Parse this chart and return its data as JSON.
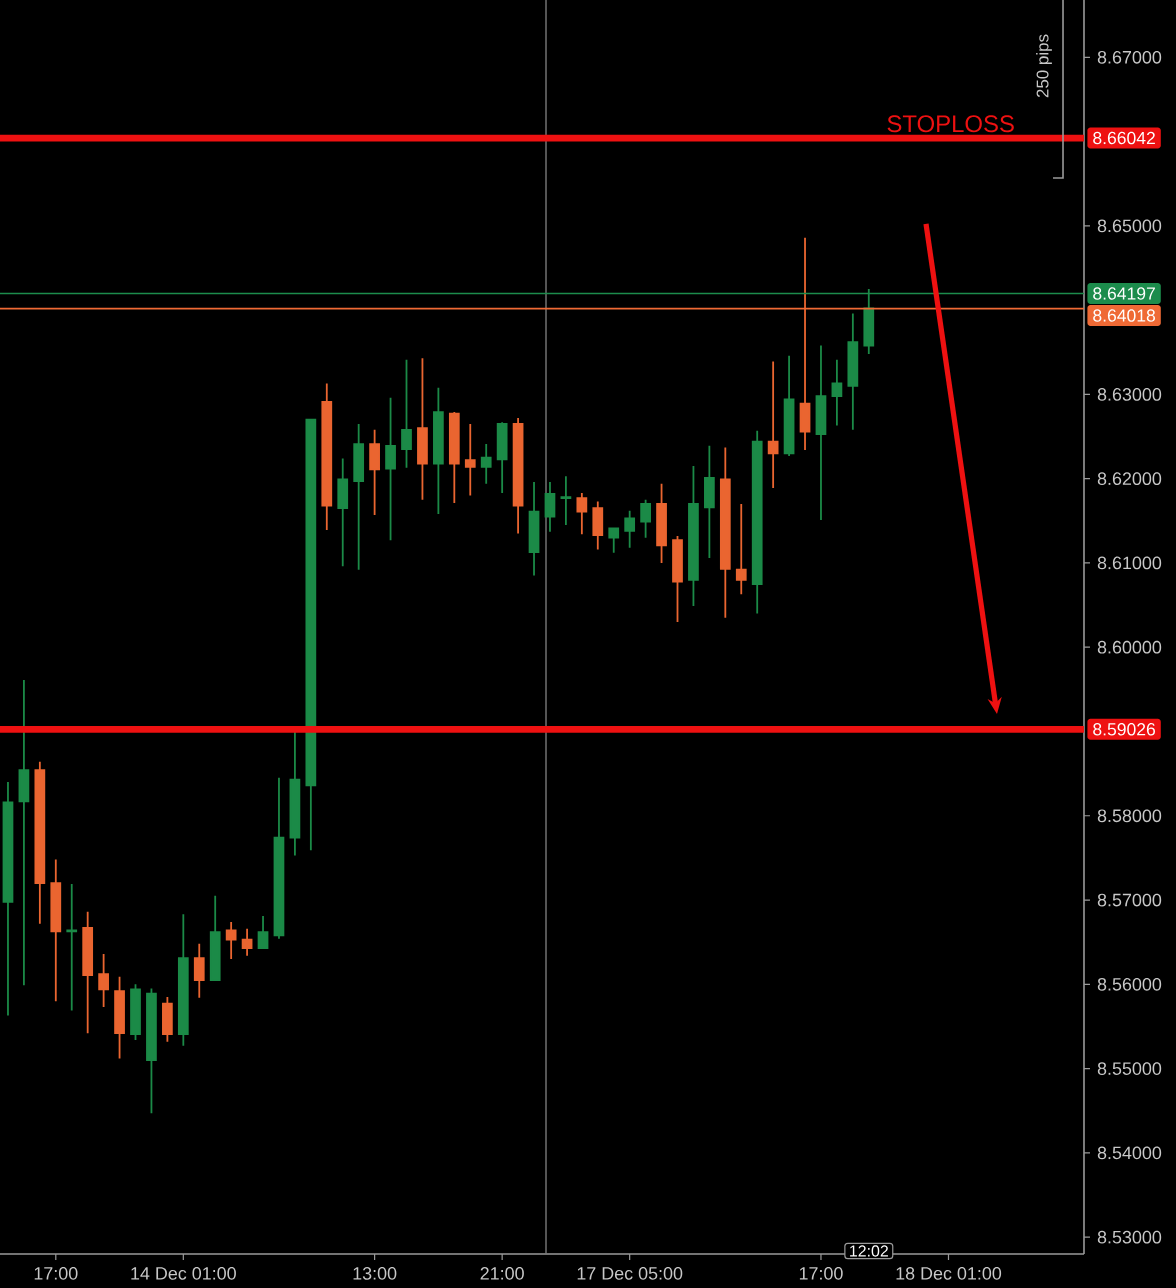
{
  "chart_data": {
    "type": "candlestick",
    "categories": [
      null,
      null,
      null,
      "17:00",
      null,
      null,
      null,
      null,
      null,
      null,
      null,
      "14 Dec 01:00",
      null,
      null,
      null,
      null,
      null,
      null,
      null,
      null,
      null,
      null,
      null,
      "13:00",
      null,
      null,
      null,
      null,
      null,
      null,
      null,
      "21:00",
      null,
      null,
      null,
      null,
      null,
      null,
      null,
      "17 Dec 05:00",
      null,
      null,
      null,
      null,
      null,
      null,
      null,
      null,
      null,
      null,
      null,
      "17:00",
      null,
      null,
      null,
      null,
      null,
      null,
      null,
      "18 Dec 01:00",
      null,
      null,
      null,
      null,
      null,
      null,
      null,
      null
    ],
    "ohlc": [
      [
        8.5698,
        8.584,
        8.5563,
        8.5816
      ],
      [
        8.5817,
        8.5961,
        8.5599,
        8.5854
      ],
      [
        8.5854,
        8.5864,
        8.5672,
        8.572
      ],
      [
        8.572,
        8.5748,
        8.558,
        8.5663
      ],
      [
        8.5663,
        8.5719,
        8.5569,
        8.5664
      ],
      [
        8.5667,
        8.5686,
        8.5542,
        8.5611
      ],
      [
        8.5612,
        8.5636,
        8.5573,
        8.5594
      ],
      [
        8.5592,
        8.5609,
        8.5512,
        8.5542
      ],
      [
        8.5541,
        8.56,
        8.5534,
        8.5594
      ],
      [
        8.551,
        8.5595,
        8.5447,
        8.5589
      ],
      [
        8.5577,
        8.5585,
        8.5532,
        8.5541
      ],
      [
        8.5541,
        8.5683,
        8.5527,
        8.5631
      ],
      [
        8.5631,
        8.5648,
        8.5584,
        8.5605
      ],
      [
        8.5605,
        8.5705,
        8.5605,
        8.5662
      ],
      [
        8.5664,
        8.5674,
        8.563,
        8.5653
      ],
      [
        8.5653,
        8.5666,
        8.5634,
        8.5643
      ],
      [
        8.5643,
        8.5681,
        8.5643,
        8.5662
      ],
      [
        8.5658,
        8.5845,
        8.5654,
        8.5774
      ],
      [
        8.5774,
        8.5904,
        8.5753,
        8.5843
      ],
      [
        8.5836,
        8.627,
        8.5759,
        8.627
      ],
      [
        8.6291,
        8.6313,
        8.6139,
        8.6168
      ],
      [
        8.6165,
        8.6224,
        8.6096,
        8.6199
      ],
      [
        8.6197,
        8.6265,
        8.6092,
        8.6241
      ],
      [
        8.6241,
        8.6258,
        8.6157,
        8.6211
      ],
      [
        8.6212,
        8.6296,
        8.6127,
        8.6239
      ],
      [
        8.6235,
        8.6341,
        8.6213,
        8.6258
      ],
      [
        8.626,
        8.6343,
        8.6175,
        8.6218
      ],
      [
        8.6218,
        8.6308,
        8.6158,
        8.6279
      ],
      [
        8.6277,
        8.6279,
        8.6171,
        8.6218
      ],
      [
        8.6222,
        8.6265,
        8.618,
        8.6214
      ],
      [
        8.6214,
        8.6241,
        8.6194,
        8.6225
      ],
      [
        8.6223,
        8.6267,
        8.6183,
        8.6265
      ],
      [
        8.6265,
        8.6272,
        8.6135,
        8.6168
      ],
      [
        8.6113,
        8.6196,
        8.6085,
        8.6161
      ],
      [
        8.6155,
        8.6196,
        8.6137,
        8.6182
      ],
      [
        8.6177,
        8.6203,
        8.6145,
        8.6178
      ],
      [
        8.6177,
        8.6183,
        8.6134,
        8.6161
      ],
      [
        8.6165,
        8.6173,
        8.6116,
        8.6133
      ],
      [
        8.613,
        8.6141,
        8.6112,
        8.6141
      ],
      [
        8.6138,
        8.6162,
        8.6118,
        8.6153
      ],
      [
        8.6149,
        8.6175,
        8.613,
        8.617
      ],
      [
        8.617,
        8.6194,
        8.61,
        8.6121
      ],
      [
        8.6127,
        8.6132,
        8.603,
        8.6078
      ],
      [
        8.608,
        8.6215,
        8.6049,
        8.617
      ],
      [
        8.6166,
        8.6239,
        8.6106,
        8.6201
      ],
      [
        8.6199,
        8.6237,
        8.6035,
        8.6093
      ],
      [
        8.6092,
        8.617,
        8.6063,
        8.608
      ],
      [
        8.6075,
        8.6257,
        8.604,
        8.6244
      ],
      [
        8.6244,
        8.6339,
        8.6189,
        8.623
      ],
      [
        8.623,
        8.6346,
        8.6227,
        8.6294
      ],
      [
        8.6289,
        8.6486,
        8.6234,
        8.6256
      ],
      [
        8.6253,
        8.6358,
        8.6151,
        8.6298
      ],
      [
        8.6298,
        8.6341,
        8.6263,
        8.6313
      ],
      [
        8.631,
        8.6396,
        8.6258,
        8.6362
      ],
      [
        8.6358,
        8.6425,
        8.6348,
        8.6402
      ],
      null,
      null,
      null,
      null,
      null,
      null,
      null,
      null,
      null,
      null,
      null,
      null,
      null
    ],
    "colors": [
      "#1b8a47",
      "#1b8a47",
      "#ea6530",
      "#ea6530",
      "#1b8a47",
      "#ea6530",
      "#ea6530",
      "#ea6530",
      "#1b8a47",
      "#1b8a47",
      "#ea6530",
      "#1b8a47",
      "#ea6530",
      "#1b8a47",
      "#ea6530",
      "#ea6530",
      "#1b8a47",
      "#1b8a47",
      "#1b8a47",
      "#1b8a47",
      "#ea6530",
      "#1b8a47",
      "#1b8a47",
      "#ea6530",
      "#1b8a47",
      "#1b8a47",
      "#ea6530",
      "#1b8a47",
      "#ea6530",
      "#ea6530",
      "#1b8a47",
      "#1b8a47",
      "#ea6530",
      "#1b8a47",
      "#1b8a47",
      "#1b8a47",
      "#ea6530",
      "#ea6530",
      "#1b8a47",
      "#1b8a47",
      "#1b8a47",
      "#ea6530",
      "#ea6530",
      "#1b8a47",
      "#1b8a47",
      "#ea6530",
      "#ea6530",
      "#1b8a47",
      "#ea6530",
      "#1b8a47",
      "#ea6530",
      "#1b8a47",
      "#1b8a47",
      "#1b8a47",
      "#1b8a47",
      null,
      null,
      null,
      null,
      null,
      null,
      null,
      null,
      null,
      null,
      null,
      null,
      null
    ],
    "ylim": [
      8.528,
      8.6768
    ],
    "yticks": [
      {
        "value": 8.53,
        "label": "8.53000"
      },
      {
        "value": 8.54,
        "label": "8.54000"
      },
      {
        "value": 8.55,
        "label": "8.55000"
      },
      {
        "value": 8.56,
        "label": "8.56000"
      },
      {
        "value": 8.57,
        "label": "8.57000"
      },
      {
        "value": 8.58,
        "label": "8.58000"
      },
      {
        "value": 8.6,
        "label": "8.60000"
      },
      {
        "value": 8.61,
        "label": "8.61000"
      },
      {
        "value": 8.62,
        "label": "8.62000"
      },
      {
        "value": 8.63,
        "label": "8.63000"
      },
      {
        "value": 8.65,
        "label": "8.65000"
      },
      {
        "value": 8.67,
        "label": "8.67000"
      }
    ],
    "ref_lines": [
      {
        "axis": "y",
        "value": 8.66042,
        "label": "8.66042",
        "color": "#ee1111"
      },
      {
        "axis": "y",
        "value": 8.59026,
        "label": "8.59026",
        "color": "#ee1111"
      },
      {
        "axis": "y",
        "value": 8.64197,
        "label": "8.64197",
        "color": "#1c8c4c"
      },
      {
        "axis": "y",
        "value": 8.64018,
        "label": "8.64018",
        "color": "#ef6a35"
      }
    ],
    "annotations": [
      {
        "text": "STOPLOSS",
        "y": 8.66042
      },
      "250 pips",
      "12:02"
    ]
  }
}
